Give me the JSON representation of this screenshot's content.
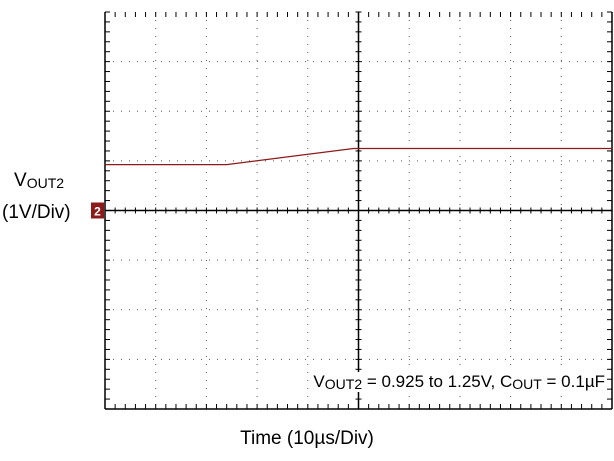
{
  "chart_data": {
    "type": "line",
    "title": "",
    "xlabel": "Time (10µs/Div)",
    "ylabel": "VOUT2 (1V/Div)",
    "ylabel_parts": {
      "main": "V",
      "sub": "OUT2",
      "scale": "(1V/Div)"
    },
    "ground_marker": "2",
    "annotation": {
      "v": "V",
      "v_sub": "OUT2",
      "v_text": " = 0.925 to 1.25V, ",
      "c": "C",
      "c_sub": "OUT",
      "c_text": " = 0.1µF"
    },
    "divisions": {
      "x": 10,
      "y": 8
    },
    "xlim": [
      0,
      100
    ],
    "ylim": [
      -4,
      4
    ],
    "x_unit": "µs",
    "y_unit": "V",
    "grid": true,
    "series": [
      {
        "color": "#8b1a1a",
        "x": [
          0,
          24,
          49,
          52,
          100
        ],
        "y": [
          0.925,
          0.925,
          1.25,
          1.25,
          1.25
        ]
      }
    ]
  }
}
